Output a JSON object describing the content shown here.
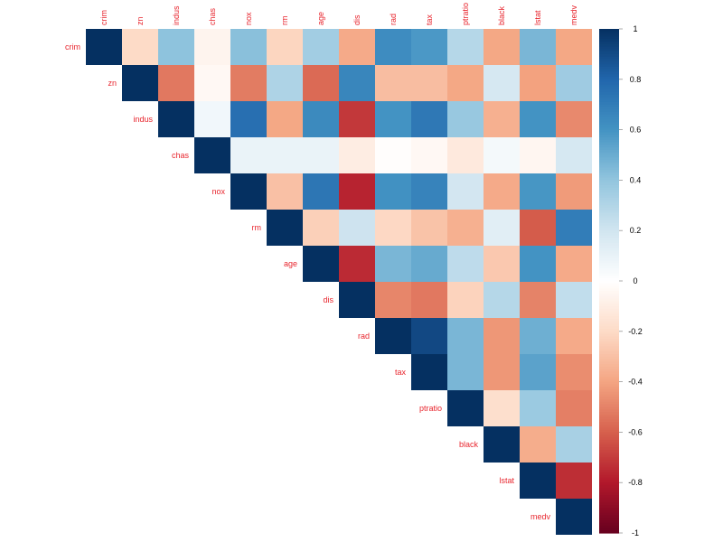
{
  "chart_data": {
    "type": "heatmap",
    "variables": [
      "crim",
      "zn",
      "indus",
      "chas",
      "nox",
      "rm",
      "age",
      "dis",
      "rad",
      "tax",
      "ptratio",
      "black",
      "lstat",
      "medv"
    ],
    "matrix_layout": "upper",
    "values": [
      [
        1.0,
        -0.2,
        0.41,
        -0.06,
        0.42,
        -0.22,
        0.35,
        -0.38,
        0.63,
        0.58,
        0.29,
        -0.39,
        0.46,
        -0.39
      ],
      [
        null,
        1.0,
        -0.53,
        -0.04,
        -0.52,
        0.31,
        -0.57,
        0.66,
        -0.31,
        -0.31,
        -0.39,
        0.18,
        -0.41,
        0.36
      ],
      [
        null,
        null,
        1.0,
        0.06,
        0.76,
        -0.39,
        0.64,
        -0.71,
        0.6,
        0.72,
        0.38,
        -0.36,
        0.6,
        -0.48
      ],
      [
        null,
        null,
        null,
        1.0,
        0.09,
        0.09,
        0.09,
        -0.1,
        -0.01,
        -0.04,
        -0.12,
        0.05,
        -0.05,
        0.18
      ],
      [
        null,
        null,
        null,
        null,
        1.0,
        -0.3,
        0.73,
        -0.77,
        0.61,
        0.67,
        0.19,
        -0.38,
        0.59,
        -0.43
      ],
      [
        null,
        null,
        null,
        null,
        null,
        1.0,
        -0.24,
        0.21,
        -0.21,
        -0.29,
        -0.36,
        0.13,
        -0.61,
        0.7
      ],
      [
        null,
        null,
        null,
        null,
        null,
        null,
        1.0,
        -0.75,
        0.46,
        0.51,
        0.26,
        -0.27,
        0.6,
        -0.38
      ],
      [
        null,
        null,
        null,
        null,
        null,
        null,
        null,
        1.0,
        -0.49,
        -0.53,
        -0.23,
        0.29,
        -0.5,
        0.25
      ],
      [
        null,
        null,
        null,
        null,
        null,
        null,
        null,
        null,
        1.0,
        0.91,
        0.46,
        -0.44,
        0.49,
        -0.38
      ],
      [
        null,
        null,
        null,
        null,
        null,
        null,
        null,
        null,
        null,
        1.0,
        0.46,
        -0.44,
        0.54,
        -0.47
      ],
      [
        null,
        null,
        null,
        null,
        null,
        null,
        null,
        null,
        null,
        null,
        1.0,
        -0.18,
        0.37,
        -0.51
      ],
      [
        null,
        null,
        null,
        null,
        null,
        null,
        null,
        null,
        null,
        null,
        null,
        1.0,
        -0.37,
        0.33
      ],
      [
        null,
        null,
        null,
        null,
        null,
        null,
        null,
        null,
        null,
        null,
        null,
        null,
        1.0,
        -0.74
      ],
      [
        null,
        null,
        null,
        null,
        null,
        null,
        null,
        null,
        null,
        null,
        null,
        null,
        null,
        1.0
      ]
    ],
    "colorbar": {
      "ticks": [
        "1",
        "0.8",
        "0.6",
        "0.4",
        "0.2",
        "0",
        "-0.2",
        "-0.4",
        "-0.6",
        "-0.8",
        "-1"
      ],
      "range": [
        -1,
        1
      ],
      "colors": {
        "neg": [
          "#67001f",
          "#b2182b",
          "#d6604d",
          "#f4a582",
          "#fddbc7",
          "#ffffff"
        ],
        "pos": [
          "#ffffff",
          "#d1e5f0",
          "#92c5de",
          "#4393c3",
          "#2166ac",
          "#053061"
        ]
      }
    },
    "label_color": "#e8262e"
  }
}
